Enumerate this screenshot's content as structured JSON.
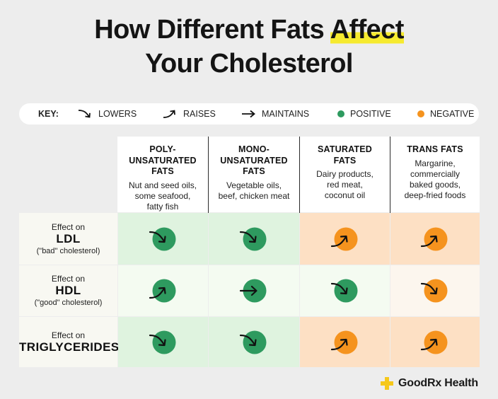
{
  "title": {
    "line1_pre": "How Different Fats ",
    "line1_hl": "Affect",
    "line2": "Your Cholesterol"
  },
  "key": {
    "label": "KEY:",
    "lowers": "LOWERS",
    "raises": "RAISES",
    "maintains": "MAINTAINS",
    "positive": "POSITIVE",
    "negative": "NEGATIVE"
  },
  "colors": {
    "positive": "#2e9a5f",
    "negative": "#f5931e",
    "positive_bg": "#dff3df",
    "positive_bg_light": "#f4fbf1",
    "negative_bg": "#fde0c4",
    "negative_bg_light": "#fcf6ee",
    "highlight": "#f6ea2f"
  },
  "columns": [
    {
      "title": "POLY-\nUNSATURATED\nFATS",
      "examples": "Nut and seed oils,\nsome seafood,\nfatty fish"
    },
    {
      "title": "MONO-\nUNSATURATED\nFATS",
      "examples": "Vegetable oils,\nbeef, chicken meat"
    },
    {
      "title": "SATURATED\nFATS",
      "examples": "Dairy products,\nred meat,\ncoconut oil"
    },
    {
      "title": "TRANS FATS",
      "examples": "Margarine,\ncommercially\nbaked goods,\ndeep-fried foods"
    }
  ],
  "rows": [
    {
      "effect_on": "Effect on",
      "name": "LDL",
      "note": "(\"bad\" cholesterol)"
    },
    {
      "effect_on": "Effect on",
      "name": "HDL",
      "note": "(\"good\" cholesterol)"
    },
    {
      "effect_on": "Effect on",
      "name": "TRIGLYCERIDES",
      "note": ""
    }
  ],
  "cells": [
    [
      {
        "dir": "lowers",
        "effect": "positive"
      },
      {
        "dir": "lowers",
        "effect": "positive"
      },
      {
        "dir": "raises",
        "effect": "negative"
      },
      {
        "dir": "raises",
        "effect": "negative"
      }
    ],
    [
      {
        "dir": "raises",
        "effect": "positive"
      },
      {
        "dir": "maintains",
        "effect": "positive"
      },
      {
        "dir": "lowers",
        "effect": "positive"
      },
      {
        "dir": "lowers",
        "effect": "negative"
      }
    ],
    [
      {
        "dir": "lowers",
        "effect": "positive"
      },
      {
        "dir": "lowers",
        "effect": "positive"
      },
      {
        "dir": "raises",
        "effect": "negative"
      },
      {
        "dir": "raises",
        "effect": "negative"
      }
    ]
  ],
  "footer": {
    "brand": "GoodRx Health",
    "logo_icon": "plus-cross-icon"
  }
}
